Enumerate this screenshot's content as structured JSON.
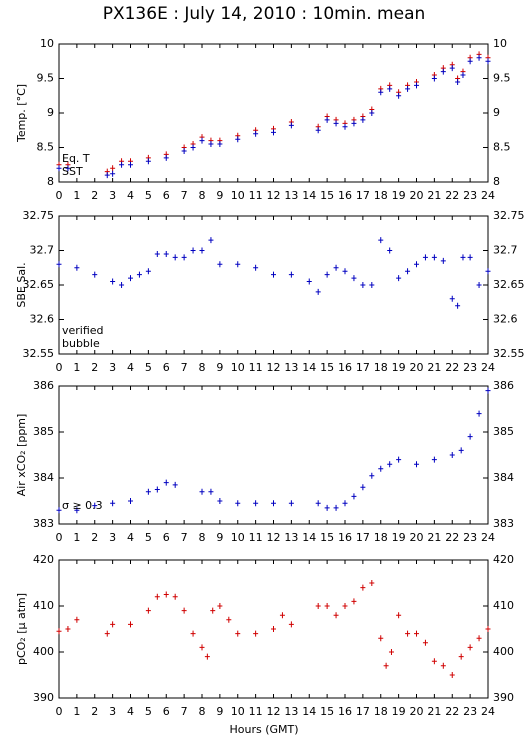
{
  "title": "PX136E : July 14, 2010 : 10min. mean",
  "xlabel": "Hours (GMT)",
  "chart_data": [
    {
      "type": "scatter",
      "ylabel": "Temp. [°C]",
      "xlim": [
        0,
        24
      ],
      "ylim": [
        8,
        10
      ],
      "xticks": [
        0,
        1,
        2,
        3,
        4,
        5,
        6,
        7,
        8,
        9,
        10,
        11,
        12,
        13,
        14,
        15,
        16,
        17,
        18,
        19,
        20,
        21,
        22,
        23,
        24
      ],
      "yticks": [
        8,
        8.5,
        9,
        9.5,
        10
      ],
      "legend": "lower left",
      "series": [
        {
          "name": "Eq. T",
          "color": "#d00000",
          "x": [
            0,
            0.5,
            2.7,
            3,
            3.5,
            4,
            5,
            6,
            7,
            7.5,
            8,
            8.5,
            9,
            10,
            11,
            12,
            13,
            14.5,
            15,
            15.5,
            16,
            16.5,
            17,
            17.5,
            18,
            18.5,
            19,
            19.5,
            20,
            21,
            21.5,
            22,
            22.3,
            22.6,
            23,
            23.5,
            24
          ],
          "values": [
            8.25,
            8.25,
            8.15,
            8.2,
            8.3,
            8.3,
            8.35,
            8.4,
            8.5,
            8.55,
            8.65,
            8.6,
            8.6,
            8.67,
            8.75,
            8.77,
            8.87,
            8.8,
            8.95,
            8.9,
            8.85,
            8.9,
            8.95,
            9.05,
            9.35,
            9.4,
            9.3,
            9.4,
            9.45,
            9.55,
            9.65,
            9.7,
            9.5,
            9.6,
            9.8,
            9.85,
            9.8
          ]
        },
        {
          "name": "SST",
          "color": "#0000c0",
          "x": [
            0,
            0.5,
            2.7,
            3,
            3.5,
            4,
            5,
            6,
            7,
            7.5,
            8,
            8.5,
            9,
            10,
            11,
            12,
            13,
            14.5,
            15,
            15.5,
            16,
            16.5,
            17,
            17.5,
            18,
            18.5,
            19,
            19.5,
            20,
            21,
            21.5,
            22,
            22.3,
            22.6,
            23,
            23.5,
            24
          ],
          "values": [
            8.2,
            8.2,
            8.1,
            8.12,
            8.25,
            8.25,
            8.3,
            8.35,
            8.45,
            8.5,
            8.6,
            8.55,
            8.55,
            8.62,
            8.7,
            8.72,
            8.82,
            8.75,
            8.9,
            8.85,
            8.8,
            8.85,
            8.9,
            9.0,
            9.3,
            9.35,
            9.25,
            9.35,
            9.4,
            9.5,
            9.6,
            9.65,
            9.45,
            9.55,
            9.75,
            9.8,
            9.75
          ]
        }
      ]
    },
    {
      "type": "scatter",
      "ylabel": "SBE Sal.",
      "xlim": [
        0,
        24
      ],
      "ylim": [
        32.55,
        32.75
      ],
      "xticks": [
        0,
        1,
        2,
        3,
        4,
        5,
        6,
        7,
        8,
        9,
        10,
        11,
        12,
        13,
        14,
        15,
        16,
        17,
        18,
        19,
        20,
        21,
        22,
        23,
        24
      ],
      "yticks": [
        32.55,
        32.6,
        32.65,
        32.7,
        32.75
      ],
      "legend": "lower left",
      "series": [
        {
          "name": "verified",
          "color": "#0000c0",
          "x": [
            0,
            1,
            2,
            3,
            3.5,
            4,
            4.5,
            5,
            5.5,
            6,
            6.5,
            7,
            7.5,
            8,
            8.5,
            9,
            10,
            11,
            12,
            13,
            14,
            14.5,
            15,
            15.5,
            16,
            16.5,
            17,
            17.5,
            18,
            18.5,
            19,
            19.5,
            20,
            20.5,
            21,
            21.5,
            22,
            22.3,
            22.6,
            23,
            23.5,
            24
          ],
          "values": [
            32.68,
            32.675,
            32.665,
            32.655,
            32.65,
            32.66,
            32.665,
            32.67,
            32.695,
            32.695,
            32.69,
            32.69,
            32.7,
            32.7,
            32.715,
            32.68,
            32.68,
            32.675,
            32.665,
            32.665,
            32.655,
            32.64,
            32.665,
            32.675,
            32.67,
            32.66,
            32.65,
            32.65,
            32.715,
            32.7,
            32.66,
            32.67,
            32.68,
            32.69,
            32.69,
            32.685,
            32.63,
            32.62,
            32.69,
            32.69,
            32.65,
            32.67
          ]
        },
        {
          "name": "bubble",
          "color": "#c000c0",
          "x": [],
          "values": []
        }
      ]
    },
    {
      "type": "scatter",
      "ylabel": "Air xCO₂ [ppm]",
      "xlim": [
        0,
        24
      ],
      "ylim": [
        383,
        386
      ],
      "xticks": [
        0,
        1,
        2,
        3,
        4,
        5,
        6,
        7,
        8,
        9,
        10,
        11,
        12,
        13,
        14,
        15,
        16,
        17,
        18,
        19,
        20,
        21,
        22,
        23,
        24
      ],
      "yticks": [
        383,
        384,
        385,
        386
      ],
      "annotation": "σ ≥ 0.3",
      "series": [
        {
          "color": "#0000c0",
          "x": [
            0,
            1,
            2,
            3,
            4,
            5,
            5.5,
            6,
            6.5,
            8,
            8.5,
            9,
            10,
            11,
            12,
            13,
            14.5,
            15,
            15.5,
            16,
            16.5,
            17,
            17.5,
            18,
            18.5,
            19,
            20,
            21,
            22,
            22.5,
            23,
            23.5,
            24
          ],
          "values": [
            383.3,
            383.3,
            383.4,
            383.45,
            383.5,
            383.7,
            383.75,
            383.9,
            383.85,
            383.7,
            383.7,
            383.5,
            383.45,
            383.45,
            383.45,
            383.45,
            383.45,
            383.35,
            383.35,
            383.45,
            383.6,
            383.8,
            384.05,
            384.2,
            384.3,
            384.4,
            384.3,
            384.4,
            384.5,
            384.6,
            384.9,
            385.4,
            385.9
          ]
        }
      ]
    },
    {
      "type": "scatter",
      "ylabel": "pCO₂ [μ atm]",
      "xlim": [
        0,
        24
      ],
      "ylim": [
        390,
        420
      ],
      "xticks": [
        0,
        1,
        2,
        3,
        4,
        5,
        6,
        7,
        8,
        9,
        10,
        11,
        12,
        13,
        14,
        15,
        16,
        17,
        18,
        19,
        20,
        21,
        22,
        23,
        24
      ],
      "yticks": [
        390,
        400,
        410,
        420
      ],
      "series": [
        {
          "color": "#d00000",
          "x": [
            0,
            0.5,
            1,
            2.7,
            3,
            4,
            5,
            5.5,
            6,
            6.5,
            7,
            7.5,
            8,
            8.3,
            8.6,
            9,
            9.5,
            10,
            11,
            12,
            12.5,
            13,
            14.5,
            15,
            15.5,
            16,
            16.5,
            17,
            17.5,
            18,
            18.3,
            18.6,
            19,
            19.5,
            20,
            20.5,
            21,
            21.5,
            22,
            22.5,
            23,
            23.5,
            24
          ],
          "values": [
            404.5,
            405,
            407,
            404,
            406,
            406,
            409,
            412,
            412.5,
            412,
            409,
            404,
            401,
            399,
            409,
            410,
            407,
            404,
            404,
            405,
            408,
            406,
            410,
            410,
            408,
            410,
            411,
            414,
            415,
            403,
            397,
            400,
            408,
            404,
            404,
            402,
            398,
            397,
            395,
            399,
            401,
            403,
            405
          ]
        }
      ]
    }
  ]
}
